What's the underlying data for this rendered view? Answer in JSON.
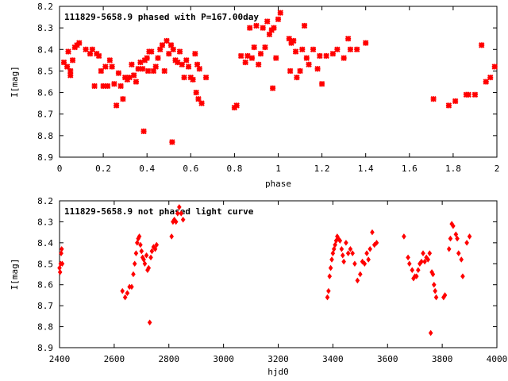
{
  "chart_data": [
    {
      "type": "scatter",
      "title": "111829-5658.9 phased with P=167.00day",
      "xlabel": "phase",
      "ylabel": "I[mag]",
      "xlim": [
        0,
        2
      ],
      "ylim": [
        8.2,
        8.9
      ],
      "y_inverted": true,
      "grid": false,
      "xticks": [
        "0",
        "0.2",
        "0.4",
        "0.6",
        "0.8",
        "1",
        "1.2",
        "1.4",
        "1.6",
        "1.8",
        "2"
      ],
      "yticks": [
        "8.2",
        "8.3",
        "8.4",
        "8.5",
        "8.6",
        "8.7",
        "8.8",
        "8.9"
      ],
      "color": "#ff0000",
      "points": [
        [
          0.02,
          8.46
        ],
        [
          0.035,
          8.48
        ],
        [
          0.04,
          8.41
        ],
        [
          0.05,
          8.5
        ],
        [
          0.05,
          8.52
        ],
        [
          0.06,
          8.45
        ],
        [
          0.07,
          8.39
        ],
        [
          0.08,
          8.38
        ],
        [
          0.09,
          8.37
        ],
        [
          0.12,
          8.4
        ],
        [
          0.14,
          8.42
        ],
        [
          0.15,
          8.4
        ],
        [
          0.16,
          8.57
        ],
        [
          0.17,
          8.42
        ],
        [
          0.18,
          8.43
        ],
        [
          0.19,
          8.5
        ],
        [
          0.2,
          8.57
        ],
        [
          0.21,
          8.48
        ],
        [
          0.22,
          8.57
        ],
        [
          0.23,
          8.45
        ],
        [
          0.24,
          8.48
        ],
        [
          0.25,
          8.56
        ],
        [
          0.26,
          8.66
        ],
        [
          0.27,
          8.51
        ],
        [
          0.28,
          8.57
        ],
        [
          0.29,
          8.63
        ],
        [
          0.3,
          8.53
        ],
        [
          0.31,
          8.54
        ],
        [
          0.32,
          8.53
        ],
        [
          0.33,
          8.47
        ],
        [
          0.34,
          8.52
        ],
        [
          0.35,
          8.55
        ],
        [
          0.36,
          8.49
        ],
        [
          0.37,
          8.46
        ],
        [
          0.38,
          8.49
        ],
        [
          0.385,
          8.78
        ],
        [
          0.39,
          8.45
        ],
        [
          0.4,
          8.44
        ],
        [
          0.405,
          8.5
        ],
        [
          0.41,
          8.41
        ],
        [
          0.42,
          8.41
        ],
        [
          0.43,
          8.5
        ],
        [
          0.44,
          8.48
        ],
        [
          0.45,
          8.44
        ],
        [
          0.46,
          8.4
        ],
        [
          0.47,
          8.38
        ],
        [
          0.48,
          8.5
        ],
        [
          0.49,
          8.36
        ],
        [
          0.5,
          8.42
        ],
        [
          0.51,
          8.38
        ],
        [
          0.52,
          8.4
        ],
        [
          0.515,
          8.83
        ],
        [
          0.53,
          8.45
        ],
        [
          0.54,
          8.46
        ],
        [
          0.55,
          8.41
        ],
        [
          0.56,
          8.47
        ],
        [
          0.57,
          8.53
        ],
        [
          0.58,
          8.45
        ],
        [
          0.59,
          8.48
        ],
        [
          0.6,
          8.53
        ],
        [
          0.61,
          8.54
        ],
        [
          0.62,
          8.42
        ],
        [
          0.625,
          8.6
        ],
        [
          0.63,
          8.47
        ],
        [
          0.635,
          8.63
        ],
        [
          0.64,
          8.49
        ],
        [
          0.65,
          8.65
        ],
        [
          0.67,
          8.53
        ],
        [
          0.8,
          8.67
        ],
        [
          0.81,
          8.66
        ],
        [
          0.83,
          8.43
        ],
        [
          0.85,
          8.46
        ],
        [
          0.86,
          8.43
        ],
        [
          0.87,
          8.3
        ],
        [
          0.88,
          8.44
        ],
        [
          0.89,
          8.39
        ],
        [
          0.9,
          8.29
        ],
        [
          0.91,
          8.47
        ],
        [
          0.92,
          8.42
        ],
        [
          0.93,
          8.3
        ],
        [
          0.94,
          8.39
        ],
        [
          0.95,
          8.27
        ],
        [
          0.96,
          8.33
        ],
        [
          0.97,
          8.31
        ],
        [
          0.975,
          8.58
        ],
        [
          0.98,
          8.3
        ],
        [
          0.99,
          8.44
        ],
        [
          1.0,
          8.26
        ],
        [
          1.01,
          8.23
        ],
        [
          1.05,
          8.35
        ],
        [
          1.055,
          8.5
        ],
        [
          1.06,
          8.37
        ],
        [
          1.07,
          8.36
        ],
        [
          1.08,
          8.41
        ],
        [
          1.085,
          8.53
        ],
        [
          1.1,
          8.5
        ],
        [
          1.11,
          8.4
        ],
        [
          1.12,
          8.29
        ],
        [
          1.13,
          8.44
        ],
        [
          1.14,
          8.47
        ],
        [
          1.16,
          8.4
        ],
        [
          1.18,
          8.49
        ],
        [
          1.19,
          8.43
        ],
        [
          1.2,
          8.56
        ],
        [
          1.22,
          8.43
        ],
        [
          1.25,
          8.42
        ],
        [
          1.27,
          8.4
        ],
        [
          1.3,
          8.44
        ],
        [
          1.32,
          8.35
        ],
        [
          1.33,
          8.4
        ],
        [
          1.36,
          8.4
        ],
        [
          1.4,
          8.37
        ],
        [
          1.71,
          8.63
        ],
        [
          1.78,
          8.66
        ],
        [
          1.81,
          8.64
        ],
        [
          1.86,
          8.61
        ],
        [
          1.87,
          8.61
        ],
        [
          1.9,
          8.61
        ],
        [
          1.93,
          8.38
        ],
        [
          1.95,
          8.55
        ],
        [
          1.97,
          8.53
        ],
        [
          1.99,
          8.48
        ]
      ]
    },
    {
      "type": "scatter",
      "title": "111829-5658.9 not phased light curve",
      "xlabel": "hjd0",
      "ylabel": "I[mag]",
      "xlim": [
        2400,
        4000
      ],
      "ylim": [
        8.2,
        8.9
      ],
      "y_inverted": true,
      "grid": false,
      "xticks": [
        "2400",
        "2600",
        "2800",
        "3000",
        "3200",
        "3400",
        "3600",
        "3800",
        "4000"
      ],
      "yticks": [
        "8.2",
        "8.3",
        "8.4",
        "8.5",
        "8.6",
        "8.7",
        "8.8",
        "8.9"
      ],
      "color": "#ff0000",
      "points": [
        [
          2400,
          8.52
        ],
        [
          2402,
          8.54
        ],
        [
          2404,
          8.5
        ],
        [
          2406,
          8.45
        ],
        [
          2408,
          8.43
        ],
        [
          2410,
          8.5
        ],
        [
          2630,
          8.63
        ],
        [
          2640,
          8.66
        ],
        [
          2648,
          8.64
        ],
        [
          2656,
          8.61
        ],
        [
          2664,
          8.61
        ],
        [
          2670,
          8.55
        ],
        [
          2675,
          8.5
        ],
        [
          2680,
          8.45
        ],
        [
          2684,
          8.4
        ],
        [
          2688,
          8.38
        ],
        [
          2692,
          8.37
        ],
        [
          2696,
          8.41
        ],
        [
          2700,
          8.44
        ],
        [
          2704,
          8.47
        ],
        [
          2708,
          8.48
        ],
        [
          2712,
          8.5
        ],
        [
          2718,
          8.46
        ],
        [
          2722,
          8.53
        ],
        [
          2726,
          8.52
        ],
        [
          2730,
          8.78
        ],
        [
          2734,
          8.47
        ],
        [
          2738,
          8.44
        ],
        [
          2744,
          8.42
        ],
        [
          2750,
          8.43
        ],
        [
          2755,
          8.41
        ],
        [
          2810,
          8.37
        ],
        [
          2815,
          8.3
        ],
        [
          2820,
          8.29
        ],
        [
          2826,
          8.3
        ],
        [
          2832,
          8.26
        ],
        [
          2838,
          8.23
        ],
        [
          2845,
          8.26
        ],
        [
          2852,
          8.29
        ],
        [
          3380,
          8.66
        ],
        [
          3384,
          8.63
        ],
        [
          3388,
          8.56
        ],
        [
          3392,
          8.52
        ],
        [
          3396,
          8.48
        ],
        [
          3400,
          8.45
        ],
        [
          3404,
          8.43
        ],
        [
          3408,
          8.41
        ],
        [
          3412,
          8.39
        ],
        [
          3416,
          8.37
        ],
        [
          3420,
          8.38
        ],
        [
          3426,
          8.39
        ],
        [
          3432,
          8.43
        ],
        [
          3436,
          8.46
        ],
        [
          3440,
          8.49
        ],
        [
          3448,
          8.4
        ],
        [
          3456,
          8.45
        ],
        [
          3464,
          8.43
        ],
        [
          3472,
          8.45
        ],
        [
          3480,
          8.5
        ],
        [
          3490,
          8.58
        ],
        [
          3500,
          8.55
        ],
        [
          3508,
          8.49
        ],
        [
          3516,
          8.5
        ],
        [
          3524,
          8.45
        ],
        [
          3530,
          8.48
        ],
        [
          3536,
          8.43
        ],
        [
          3544,
          8.35
        ],
        [
          3552,
          8.41
        ],
        [
          3560,
          8.4
        ],
        [
          3660,
          8.37
        ],
        [
          3675,
          8.47
        ],
        [
          3680,
          8.5
        ],
        [
          3690,
          8.53
        ],
        [
          3695,
          8.57
        ],
        [
          3700,
          8.56
        ],
        [
          3706,
          8.56
        ],
        [
          3712,
          8.53
        ],
        [
          3718,
          8.5
        ],
        [
          3724,
          8.49
        ],
        [
          3730,
          8.45
        ],
        [
          3736,
          8.49
        ],
        [
          3742,
          8.47
        ],
        [
          3748,
          8.48
        ],
        [
          3754,
          8.45
        ],
        [
          3758,
          8.83
        ],
        [
          3762,
          8.54
        ],
        [
          3766,
          8.55
        ],
        [
          3770,
          8.6
        ],
        [
          3774,
          8.63
        ],
        [
          3778,
          8.66
        ],
        [
          3805,
          8.66
        ],
        [
          3810,
          8.65
        ],
        [
          3825,
          8.43
        ],
        [
          3830,
          8.38
        ],
        [
          3835,
          8.31
        ],
        [
          3840,
          8.32
        ],
        [
          3850,
          8.36
        ],
        [
          3855,
          8.38
        ],
        [
          3860,
          8.45
        ],
        [
          3870,
          8.48
        ],
        [
          3875,
          8.56
        ],
        [
          3890,
          8.4
        ],
        [
          3900,
          8.37
        ]
      ]
    }
  ]
}
